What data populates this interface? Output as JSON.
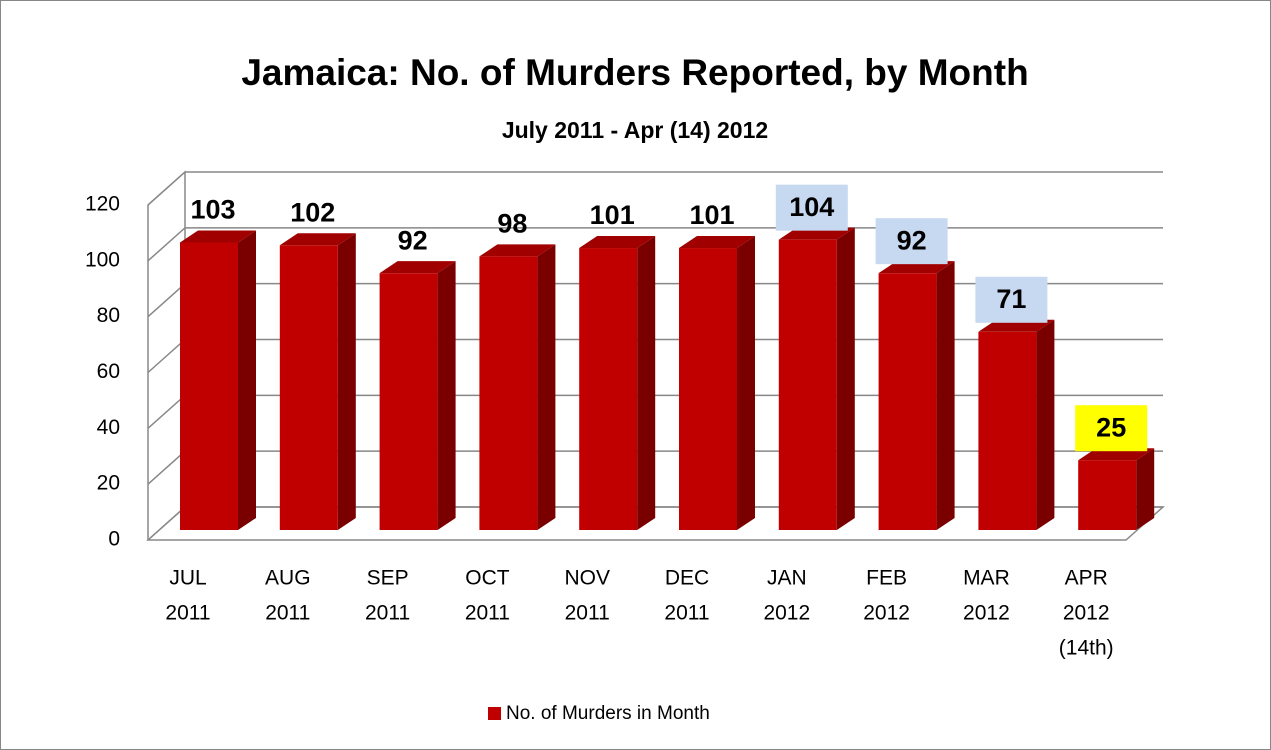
{
  "chart_data": {
    "type": "bar3d",
    "title": "Jamaica: No. of Murders Reported, by Month",
    "subtitle": "July 2011 - Apr (14) 2012",
    "categories": [
      [
        "JUL",
        "2011"
      ],
      [
        "AUG",
        "2011"
      ],
      [
        "SEP",
        "2011"
      ],
      [
        "OCT",
        "2011"
      ],
      [
        "NOV",
        "2011"
      ],
      [
        "DEC",
        "2011"
      ],
      [
        "JAN",
        "2012"
      ],
      [
        "FEB",
        "2012"
      ],
      [
        "MAR",
        "2012"
      ],
      [
        "APR",
        "2012",
        "(14th)"
      ]
    ],
    "series": [
      {
        "name": "No. of Murders in Month",
        "color": "#c00000",
        "values": [
          103,
          102,
          92,
          98,
          101,
          101,
          104,
          92,
          71,
          25
        ]
      }
    ],
    "label_highlights": [
      null,
      null,
      null,
      null,
      null,
      null,
      "#c6d9f1",
      "#c6d9f1",
      "#c6d9f1",
      "#ffff00"
    ],
    "ylim": [
      0,
      120
    ],
    "yticks": [
      0,
      20,
      40,
      60,
      80,
      100,
      120
    ],
    "grid": true,
    "legend": "bottom"
  }
}
